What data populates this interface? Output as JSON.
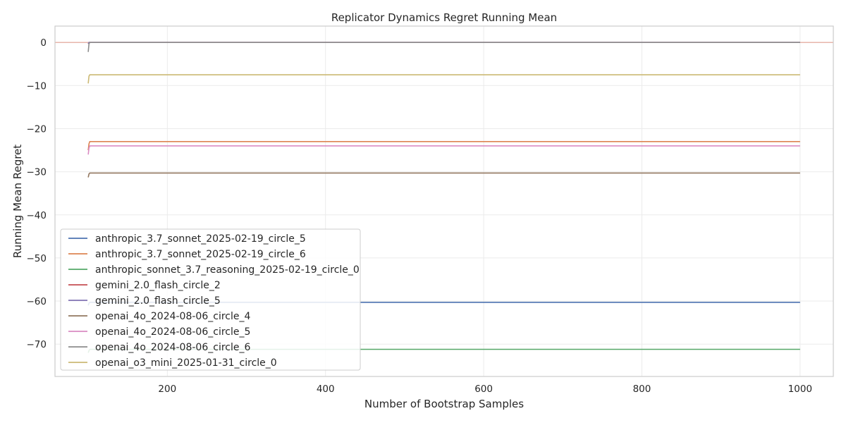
{
  "chart_data": {
    "type": "line",
    "title": "Replicator Dynamics Regret Running Mean",
    "xlabel": "Number of Bootstrap Samples",
    "ylabel": "Running Mean Regret",
    "xlim": [
      58,
      1042
    ],
    "ylim": [
      -77.5,
      3.8
    ],
    "xticks": [
      200,
      400,
      600,
      800,
      1000
    ],
    "yticks": [
      0,
      -10,
      -20,
      -30,
      -40,
      -50,
      -60,
      -70
    ],
    "ytick_labels": [
      "0",
      "−10",
      "−20",
      "−30",
      "−40",
      "−50",
      "−60",
      "−70"
    ],
    "grid": true,
    "legend_position": "lower-left",
    "reference_line": {
      "y": 0,
      "color": "#e7b5ab"
    },
    "series": [
      {
        "name": "anthropic_3.7_sonnet_2025-02-19_circle_5",
        "color": "#4c72b0",
        "x": [
          100,
          101,
          102,
          1000
        ],
        "y": [
          -61.0,
          -60.5,
          -60.3,
          -60.3
        ]
      },
      {
        "name": "anthropic_3.7_sonnet_2025-02-19_circle_6",
        "color": "#dd8452",
        "x": [
          100,
          101,
          102,
          1000
        ],
        "y": [
          -25.0,
          -23.5,
          -23.0,
          -23.0
        ]
      },
      {
        "name": "anthropic_sonnet_3.7_reasoning_2025-02-19_circle_0",
        "color": "#55a868",
        "x": [
          100,
          101,
          102,
          1000
        ],
        "y": [
          -72.0,
          -71.5,
          -71.2,
          -71.2
        ]
      },
      {
        "name": "gemini_2.0_flash_circle_2",
        "color": "#c44e52",
        "x": [
          100,
          101,
          1000
        ],
        "y": [
          -0.3,
          0.0,
          0.0
        ]
      },
      {
        "name": "gemini_2.0_flash_circle_5",
        "color": "#8172b3",
        "x": [
          100,
          101,
          1000
        ],
        "y": [
          -0.3,
          0.0,
          0.0
        ]
      },
      {
        "name": "openai_4o_2024-08-06_circle_4",
        "color": "#937860",
        "x": [
          100,
          101,
          102,
          1000
        ],
        "y": [
          -31.3,
          -30.5,
          -30.3,
          -30.3
        ]
      },
      {
        "name": "openai_4o_2024-08-06_circle_5",
        "color": "#da8bc3",
        "x": [
          100,
          101,
          102,
          1000
        ],
        "y": [
          -26.0,
          -24.5,
          -24.0,
          -24.0
        ]
      },
      {
        "name": "openai_4o_2024-08-06_circle_6",
        "color": "#8c8c8c",
        "x": [
          100,
          101,
          102,
          1000
        ],
        "y": [
          -2.2,
          -0.3,
          0.0,
          0.0
        ]
      },
      {
        "name": "openai_o3_mini_2025-01-31_circle_0",
        "color": "#ccb974",
        "x": [
          100,
          101,
          102,
          1000
        ],
        "y": [
          -9.5,
          -7.8,
          -7.5,
          -7.5
        ]
      }
    ]
  }
}
